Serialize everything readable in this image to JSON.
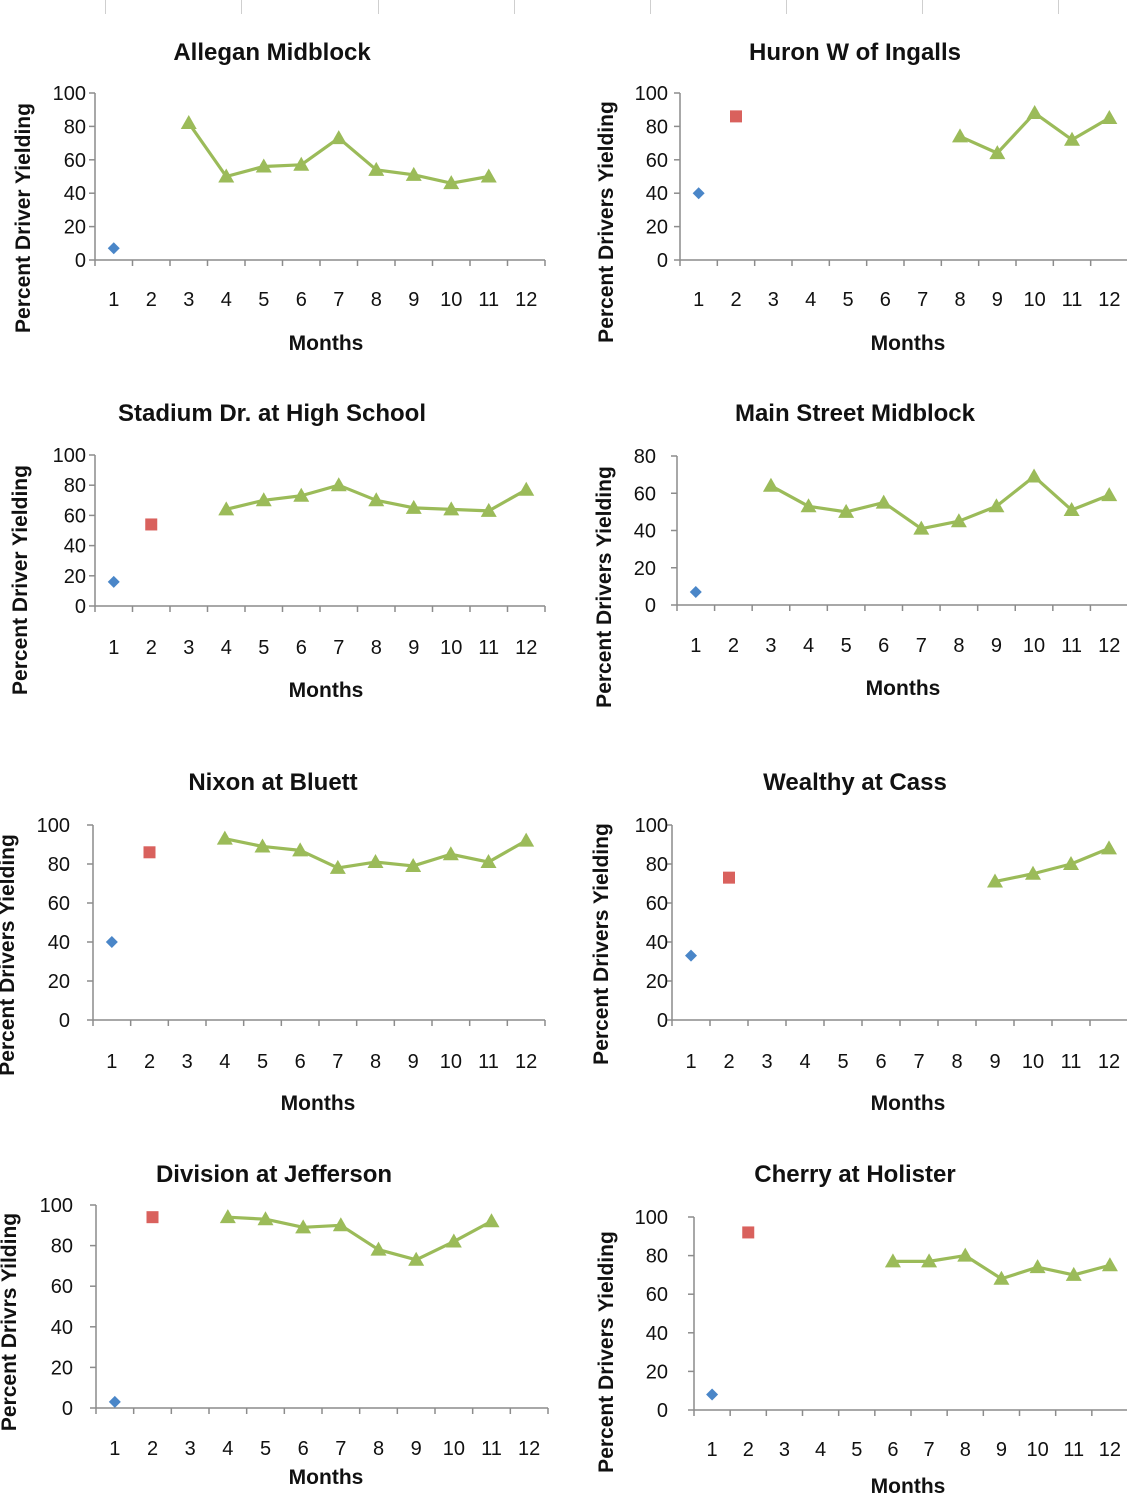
{
  "colors": {
    "series1": "#4a86c8",
    "series2": "#d9615d",
    "series3": "#9bbb59",
    "axis": "#8c8c8c"
  },
  "xlabel": "Months",
  "chart_data": [
    {
      "type": "line",
      "title": "Allegan Midblock",
      "xlabel": "Months",
      "ylabel": "Percent Driver Yielding",
      "categories": [
        "1",
        "2",
        "3",
        "4",
        "5",
        "6",
        "7",
        "8",
        "9",
        "10",
        "11",
        "12"
      ],
      "ylim": [
        0,
        100
      ],
      "yticks": [
        0,
        20,
        40,
        60,
        80,
        100
      ],
      "series": [
        {
          "marker": "diamond",
          "points": [
            [
              1,
              7
            ]
          ]
        },
        {
          "marker": "square",
          "points": []
        },
        {
          "marker": "triangle",
          "points": [
            [
              3,
              82
            ],
            [
              4,
              50
            ],
            [
              5,
              56
            ],
            [
              6,
              57
            ],
            [
              7,
              73
            ],
            [
              8,
              54
            ],
            [
              9,
              51
            ],
            [
              10,
              46
            ],
            [
              11,
              50
            ]
          ]
        }
      ]
    },
    {
      "type": "line",
      "title": "Huron W of Ingalls",
      "xlabel": "Months",
      "ylabel": "Percent Drivers Yielding",
      "categories": [
        "1",
        "2",
        "3",
        "4",
        "5",
        "6",
        "7",
        "8",
        "9",
        "10",
        "11",
        "12"
      ],
      "ylim": [
        0,
        100
      ],
      "yticks": [
        0,
        20,
        40,
        60,
        80,
        100
      ],
      "series": [
        {
          "marker": "diamond",
          "points": [
            [
              1,
              40
            ]
          ]
        },
        {
          "marker": "square",
          "points": [
            [
              2,
              86
            ]
          ]
        },
        {
          "marker": "triangle",
          "points": [
            [
              8,
              74
            ],
            [
              9,
              64
            ],
            [
              10,
              88
            ],
            [
              11,
              72
            ],
            [
              12,
              85
            ]
          ]
        }
      ]
    },
    {
      "type": "line",
      "title": "Stadium Dr. at High School",
      "xlabel": "Months",
      "ylabel": "Percent Driver Yielding",
      "categories": [
        "1",
        "2",
        "3",
        "4",
        "5",
        "6",
        "7",
        "8",
        "9",
        "10",
        "11",
        "12"
      ],
      "ylim": [
        0,
        100
      ],
      "yticks": [
        0,
        20,
        40,
        60,
        80,
        100
      ],
      "series": [
        {
          "marker": "diamond",
          "points": [
            [
              1,
              16
            ]
          ]
        },
        {
          "marker": "square",
          "points": [
            [
              2,
              54
            ]
          ]
        },
        {
          "marker": "triangle",
          "points": [
            [
              4,
              64
            ],
            [
              5,
              70
            ],
            [
              6,
              73
            ],
            [
              7,
              80
            ],
            [
              8,
              70
            ],
            [
              9,
              65
            ],
            [
              10,
              64
            ],
            [
              11,
              63
            ],
            [
              12,
              77
            ]
          ]
        }
      ]
    },
    {
      "type": "line",
      "title": "Main Street Midblock",
      "xlabel": "Months",
      "ylabel": "Percent Drivers Yielding",
      "categories": [
        "1",
        "2",
        "3",
        "4",
        "5",
        "6",
        "7",
        "8",
        "9",
        "10",
        "11",
        "12"
      ],
      "ylim": [
        0,
        80
      ],
      "yticks": [
        0,
        20,
        40,
        60,
        80
      ],
      "series": [
        {
          "marker": "diamond",
          "points": [
            [
              1,
              7
            ]
          ]
        },
        {
          "marker": "square",
          "points": []
        },
        {
          "marker": "triangle",
          "points": [
            [
              3,
              64
            ],
            [
              4,
              53
            ],
            [
              5,
              50
            ],
            [
              6,
              55
            ],
            [
              7,
              41
            ],
            [
              8,
              45
            ],
            [
              9,
              53
            ],
            [
              10,
              69
            ],
            [
              11,
              51
            ],
            [
              12,
              59
            ]
          ]
        }
      ]
    },
    {
      "type": "line",
      "title": "Nixon at Bluett",
      "xlabel": "Months",
      "ylabel": "Percent Drivers Yielding",
      "categories": [
        "1",
        "2",
        "3",
        "4",
        "5",
        "6",
        "7",
        "8",
        "9",
        "10",
        "11",
        "12"
      ],
      "ylim": [
        0,
        100
      ],
      "yticks": [
        0,
        20,
        40,
        60,
        80,
        100
      ],
      "series": [
        {
          "marker": "diamond",
          "points": [
            [
              1,
              40
            ]
          ]
        },
        {
          "marker": "square",
          "points": [
            [
              2,
              86
            ]
          ]
        },
        {
          "marker": "triangle",
          "points": [
            [
              4,
              93
            ],
            [
              5,
              89
            ],
            [
              6,
              87
            ],
            [
              7,
              78
            ],
            [
              8,
              81
            ],
            [
              9,
              79
            ],
            [
              10,
              85
            ],
            [
              11,
              81
            ],
            [
              12,
              92
            ]
          ]
        }
      ]
    },
    {
      "type": "line",
      "title": "Wealthy at Cass",
      "xlabel": "Months",
      "ylabel": "Percent Drivers Yielding",
      "categories": [
        "1",
        "2",
        "3",
        "4",
        "5",
        "6",
        "7",
        "8",
        "9",
        "10",
        "11",
        "12"
      ],
      "ylim": [
        0,
        100
      ],
      "yticks": [
        0,
        20,
        40,
        60,
        80,
        100
      ],
      "series": [
        {
          "marker": "diamond",
          "points": [
            [
              1,
              33
            ]
          ]
        },
        {
          "marker": "square",
          "points": [
            [
              2,
              73
            ]
          ]
        },
        {
          "marker": "triangle",
          "points": [
            [
              9,
              71
            ],
            [
              10,
              75
            ],
            [
              11,
              80
            ],
            [
              12,
              88
            ]
          ]
        }
      ]
    },
    {
      "type": "line",
      "title": "Division at Jefferson",
      "xlabel": "Months",
      "ylabel": "Percent Drivrs Yilding",
      "categories": [
        "1",
        "2",
        "3",
        "4",
        "5",
        "6",
        "7",
        "8",
        "9",
        "10",
        "11",
        "12"
      ],
      "ylim": [
        0,
        100
      ],
      "yticks": [
        0,
        20,
        40,
        60,
        80,
        100
      ],
      "series": [
        {
          "marker": "diamond",
          "points": [
            [
              1,
              3
            ]
          ]
        },
        {
          "marker": "square",
          "points": [
            [
              2,
              94
            ]
          ]
        },
        {
          "marker": "triangle",
          "points": [
            [
              4,
              94
            ],
            [
              5,
              93
            ],
            [
              6,
              89
            ],
            [
              7,
              90
            ],
            [
              8,
              78
            ],
            [
              9,
              73
            ],
            [
              10,
              82
            ],
            [
              11,
              92
            ]
          ]
        }
      ]
    },
    {
      "type": "line",
      "title": "Cherry at Holister",
      "xlabel": "Months",
      "ylabel": "Percent Drivers Yielding",
      "categories": [
        "1",
        "2",
        "3",
        "4",
        "5",
        "6",
        "7",
        "8",
        "9",
        "10",
        "11",
        "12"
      ],
      "ylim": [
        0,
        100
      ],
      "yticks": [
        0,
        20,
        40,
        60,
        80,
        100
      ],
      "series": [
        {
          "marker": "diamond",
          "points": [
            [
              1,
              8
            ]
          ]
        },
        {
          "marker": "square",
          "points": [
            [
              2,
              92
            ]
          ]
        },
        {
          "marker": "triangle",
          "points": [
            [
              6,
              77
            ],
            [
              7,
              77
            ],
            [
              8,
              80
            ],
            [
              9,
              68
            ],
            [
              10,
              74
            ],
            [
              11,
              70
            ],
            [
              12,
              75
            ]
          ]
        }
      ]
    }
  ]
}
